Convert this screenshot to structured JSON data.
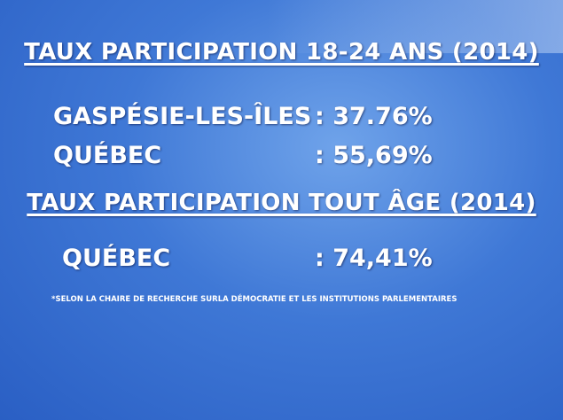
{
  "sections": [
    {
      "title": "TAUX PARTICIPATION 18-24 ANS (2014)",
      "rows": [
        {
          "label": "GASPÉSIE-LES-ÎLES",
          "value": ": 37.76%"
        },
        {
          "label": "QUÉBEC",
          "value": ": 55,69%"
        }
      ]
    },
    {
      "title": "TAUX PARTICIPATION TOUT ÂGE (2014)",
      "rows": [
        {
          "label": "QUÉBEC",
          "value": ": 74,41%"
        }
      ]
    }
  ],
  "footnote": "*SELON LA CHAIRE DE RECHERCHE SURLA DÉMOCRATIE ET LES INSTITUTIONS PARLEMENTAIRES"
}
